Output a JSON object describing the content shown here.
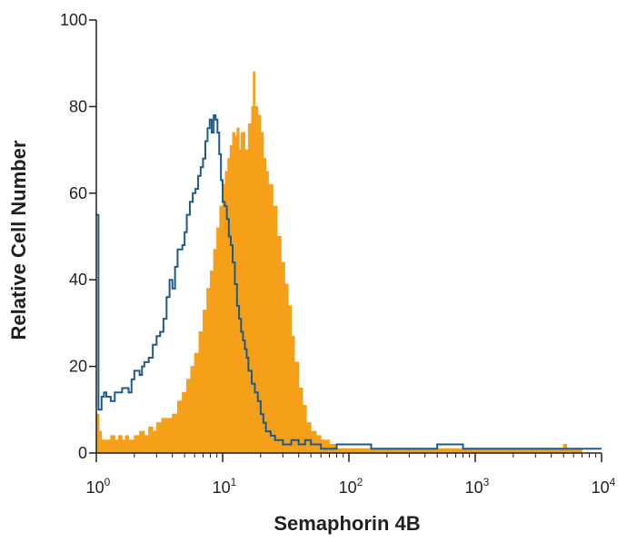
{
  "chart_data": {
    "type": "area",
    "xlabel": "Semaphorin 4B",
    "ylabel": "Relative Cell Number",
    "x_scale": "log",
    "xlim": [
      1,
      10000
    ],
    "ylim": [
      0,
      100
    ],
    "x_ticks": [
      {
        "value": 1,
        "base": "10",
        "exp": "0"
      },
      {
        "value": 10,
        "base": "10",
        "exp": "1"
      },
      {
        "value": 100,
        "base": "10",
        "exp": "2"
      },
      {
        "value": 1000,
        "base": "10",
        "exp": "3"
      },
      {
        "value": 10000,
        "base": "10",
        "exp": "4"
      }
    ],
    "y_ticks": [
      0,
      20,
      40,
      60,
      80,
      100
    ],
    "grid": false,
    "legend": "none",
    "series": [
      {
        "style": "filled histogram",
        "color": "#f6a01a",
        "points": [
          [
            1.0,
            9
          ],
          [
            1.05,
            5
          ],
          [
            1.1,
            3
          ],
          [
            1.2,
            3
          ],
          [
            1.3,
            4
          ],
          [
            1.4,
            3
          ],
          [
            1.5,
            4
          ],
          [
            1.6,
            3
          ],
          [
            1.7,
            4
          ],
          [
            1.8,
            3
          ],
          [
            2.0,
            4
          ],
          [
            2.2,
            5
          ],
          [
            2.4,
            4
          ],
          [
            2.6,
            6
          ],
          [
            2.8,
            5
          ],
          [
            3.0,
            7
          ],
          [
            3.3,
            8
          ],
          [
            3.6,
            8
          ],
          [
            4.0,
            9
          ],
          [
            4.4,
            12
          ],
          [
            4.8,
            14
          ],
          [
            5.2,
            17
          ],
          [
            5.6,
            20
          ],
          [
            6.0,
            23
          ],
          [
            6.5,
            28
          ],
          [
            7.0,
            33
          ],
          [
            7.5,
            38
          ],
          [
            8.0,
            42
          ],
          [
            8.5,
            47
          ],
          [
            9.0,
            52
          ],
          [
            9.5,
            57
          ],
          [
            10.0,
            62
          ],
          [
            10.5,
            65
          ],
          [
            11.0,
            68
          ],
          [
            11.5,
            71
          ],
          [
            12.0,
            74
          ],
          [
            12.5,
            73
          ],
          [
            13.0,
            75
          ],
          [
            13.5,
            70
          ],
          [
            14.0,
            74
          ],
          [
            15.0,
            70
          ],
          [
            16.0,
            76
          ],
          [
            17.0,
            80
          ],
          [
            17.5,
            88
          ],
          [
            18.0,
            80
          ],
          [
            19.0,
            78
          ],
          [
            20.0,
            74
          ],
          [
            21.0,
            68
          ],
          [
            22.0,
            65
          ],
          [
            23.0,
            62
          ],
          [
            25.0,
            57
          ],
          [
            27.0,
            50
          ],
          [
            29.0,
            44
          ],
          [
            31.0,
            39
          ],
          [
            33.0,
            34
          ],
          [
            35.0,
            27
          ],
          [
            37.0,
            21
          ],
          [
            40.0,
            15
          ],
          [
            43.0,
            11
          ],
          [
            46.0,
            7
          ],
          [
            50.0,
            5
          ],
          [
            55.0,
            4
          ],
          [
            60.0,
            3
          ],
          [
            70.0,
            2
          ],
          [
            80.0,
            1
          ],
          [
            100.0,
            1
          ],
          [
            150.0,
            1
          ],
          [
            200.0,
            1
          ],
          [
            300.0,
            1
          ],
          [
            500.0,
            1
          ],
          [
            800.0,
            1
          ],
          [
            1000.0,
            1
          ],
          [
            2000.0,
            1
          ],
          [
            4800.0,
            1
          ],
          [
            5000.0,
            2
          ],
          [
            5300.0,
            1
          ],
          [
            7000.0,
            0
          ],
          [
            10000.0,
            0
          ]
        ]
      },
      {
        "style": "outline histogram",
        "color": "#1f5a8a",
        "points": [
          [
            1.0,
            55
          ],
          [
            1.04,
            10
          ],
          [
            1.1,
            13
          ],
          [
            1.15,
            14
          ],
          [
            1.2,
            13
          ],
          [
            1.3,
            12
          ],
          [
            1.4,
            14
          ],
          [
            1.5,
            14
          ],
          [
            1.6,
            15
          ],
          [
            1.7,
            15
          ],
          [
            1.8,
            14
          ],
          [
            1.9,
            17
          ],
          [
            2.0,
            19
          ],
          [
            2.1,
            19
          ],
          [
            2.2,
            18
          ],
          [
            2.3,
            20
          ],
          [
            2.4,
            21
          ],
          [
            2.5,
            21
          ],
          [
            2.6,
            22
          ],
          [
            2.8,
            25
          ],
          [
            3.0,
            27
          ],
          [
            3.2,
            28
          ],
          [
            3.4,
            31
          ],
          [
            3.6,
            36
          ],
          [
            3.8,
            40
          ],
          [
            4.0,
            38
          ],
          [
            4.2,
            43
          ],
          [
            4.4,
            47
          ],
          [
            4.6,
            47
          ],
          [
            4.8,
            48
          ],
          [
            5.0,
            51
          ],
          [
            5.2,
            55
          ],
          [
            5.5,
            58
          ],
          [
            5.8,
            60
          ],
          [
            6.1,
            61
          ],
          [
            6.4,
            64
          ],
          [
            6.7,
            66
          ],
          [
            7.0,
            68
          ],
          [
            7.3,
            72
          ],
          [
            7.6,
            75
          ],
          [
            7.9,
            77
          ],
          [
            8.2,
            74
          ],
          [
            8.5,
            78
          ],
          [
            8.8,
            77
          ],
          [
            9.1,
            74
          ],
          [
            9.4,
            69
          ],
          [
            9.7,
            63
          ],
          [
            10.0,
            58
          ],
          [
            10.4,
            57
          ],
          [
            10.8,
            54
          ],
          [
            11.2,
            50
          ],
          [
            11.6,
            48
          ],
          [
            12.0,
            44
          ],
          [
            12.5,
            39
          ],
          [
            13.0,
            34
          ],
          [
            13.5,
            31
          ],
          [
            14.0,
            28
          ],
          [
            14.5,
            26
          ],
          [
            15.0,
            24
          ],
          [
            15.5,
            22
          ],
          [
            16.0,
            19
          ],
          [
            17.0,
            16
          ],
          [
            18.0,
            14
          ],
          [
            19.0,
            12
          ],
          [
            20.0,
            9
          ],
          [
            21.0,
            7
          ],
          [
            22.0,
            5
          ],
          [
            24.0,
            4
          ],
          [
            26.0,
            3
          ],
          [
            30.0,
            2
          ],
          [
            35.0,
            3
          ],
          [
            40.0,
            2
          ],
          [
            45.0,
            3
          ],
          [
            50.0,
            2
          ],
          [
            60.0,
            1
          ],
          [
            80.0,
            2
          ],
          [
            100.0,
            2
          ],
          [
            150.0,
            1
          ],
          [
            300.0,
            1
          ],
          [
            500.0,
            2
          ],
          [
            800.0,
            1
          ],
          [
            1000.0,
            1
          ],
          [
            2000.0,
            1
          ],
          [
            3000.0,
            1
          ],
          [
            5000.0,
            1
          ],
          [
            10000.0,
            1
          ]
        ]
      }
    ]
  }
}
